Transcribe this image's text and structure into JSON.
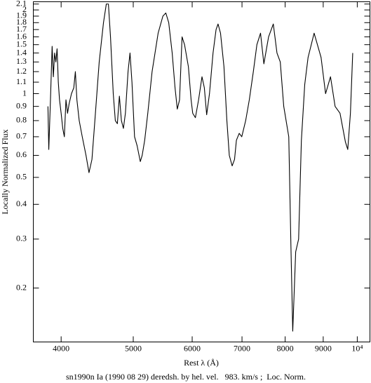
{
  "chart_data": {
    "type": "line",
    "xlabel": "Rest λ (Å)",
    "ylabel": "Locally Normalized Flux",
    "caption": "sn1990n Ia (1990 08 29) deredsh. by hel. vel.   983. km/s ;  Loc. Norm.",
    "xlog": true,
    "ylog": true,
    "grid": false,
    "xlim": [
      3670,
      10400
    ],
    "ylim": [
      0.128,
      2.14
    ],
    "xticks": [
      4000,
      5000,
      6000,
      7000,
      8000,
      9000,
      {
        "value": 10000,
        "label": "10⁴"
      }
    ],
    "yticks": [
      0.2,
      0.3,
      0.4,
      0.5,
      0.6,
      0.7,
      0.8,
      0.9,
      1,
      1.1,
      1.2,
      1.3,
      1.4,
      1.5,
      1.6,
      1.7,
      1.8,
      1.9,
      2,
      2.1
    ],
    "series": [
      {
        "name": "sn1990n",
        "color": "#000000",
        "x": [
          3840,
          3850,
          3870,
          3890,
          3905,
          3920,
          3935,
          3950,
          3965,
          3980,
          4000,
          4020,
          4040,
          4060,
          4080,
          4100,
          4130,
          4160,
          4180,
          4200,
          4230,
          4270,
          4320,
          4360,
          4400,
          4440,
          4500,
          4560,
          4600,
          4630,
          4660,
          4700,
          4730,
          4760,
          4790,
          4820,
          4850,
          4880,
          4920,
          4950,
          4980,
          5020,
          5060,
          5110,
          5140,
          5180,
          5230,
          5300,
          5400,
          5480,
          5530,
          5580,
          5640,
          5690,
          5730,
          5770,
          5815,
          5860,
          5930,
          5980,
          6010,
          6060,
          6120,
          6185,
          6230,
          6275,
          6330,
          6400,
          6460,
          6500,
          6550,
          6620,
          6680,
          6730,
          6790,
          6840,
          6880,
          6940,
          6995,
          7080,
          7160,
          7250,
          7330,
          7413,
          7490,
          7600,
          7712,
          7800,
          7880,
          7965,
          8090,
          8145,
          8190,
          8265,
          8340,
          8412,
          8500,
          8588,
          8750,
          8940,
          9066,
          9205,
          9337,
          9480,
          9640,
          9710,
          9790,
          9860
        ],
        "values": [
          0.9,
          0.63,
          0.95,
          1.48,
          1.15,
          1.4,
          1.3,
          1.45,
          1.1,
          0.95,
          0.85,
          0.75,
          0.7,
          0.95,
          0.85,
          0.92,
          1.0,
          1.05,
          1.2,
          0.95,
          0.8,
          0.7,
          0.6,
          0.52,
          0.58,
          0.8,
          1.3,
          1.8,
          2.1,
          2.1,
          1.6,
          1.0,
          0.8,
          0.78,
          0.98,
          0.8,
          0.75,
          0.85,
          1.2,
          1.4,
          1.1,
          0.7,
          0.65,
          0.57,
          0.6,
          0.68,
          0.85,
          1.2,
          1.65,
          1.9,
          1.95,
          1.8,
          1.4,
          1.05,
          0.88,
          0.95,
          1.6,
          1.5,
          1.25,
          0.95,
          0.85,
          0.82,
          0.95,
          1.15,
          1.05,
          0.84,
          1.0,
          1.4,
          1.7,
          1.78,
          1.65,
          1.25,
          0.8,
          0.6,
          0.55,
          0.58,
          0.68,
          0.72,
          0.7,
          0.8,
          0.95,
          1.2,
          1.5,
          1.65,
          1.28,
          1.6,
          1.78,
          1.4,
          1.3,
          0.9,
          0.7,
          0.28,
          0.14,
          0.27,
          0.3,
          0.68,
          1.08,
          1.35,
          1.65,
          1.35,
          1.0,
          1.15,
          0.9,
          0.85,
          0.67,
          0.63,
          0.85,
          1.4
        ]
      }
    ]
  }
}
